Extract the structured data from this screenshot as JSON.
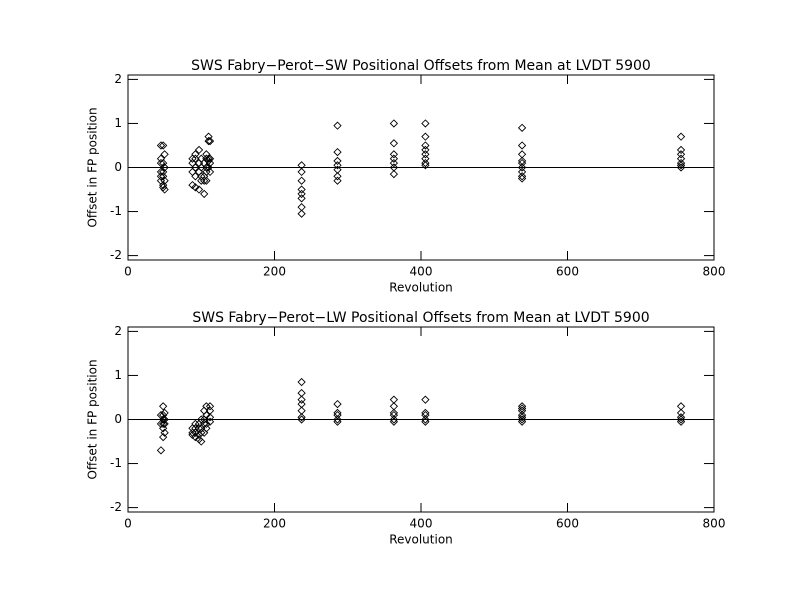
{
  "chart_data": [
    {
      "type": "scatter",
      "title": "SWS Fabry−Perot−SW Positional Offsets from Mean at LVDT 5900",
      "xlabel": "Revolution",
      "ylabel": "Offset in FP position",
      "xlim": [
        0,
        800
      ],
      "ylim": [
        -2.1,
        2.1
      ],
      "xticks": [
        0,
        200,
        400,
        600,
        800
      ],
      "yticks": [
        -2,
        -1,
        0,
        1,
        2
      ],
      "color": "#000000",
      "zero_line": true,
      "x": [
        45,
        45,
        45,
        45,
        45,
        45,
        48,
        48,
        48,
        48,
        48,
        48,
        50,
        50,
        50,
        50,
        88,
        88,
        88,
        88,
        92,
        92,
        92,
        92,
        92,
        97,
        97,
        97,
        97,
        100,
        100,
        100,
        100,
        104,
        104,
        104,
        104,
        107,
        107,
        107,
        107,
        107,
        110,
        110,
        110,
        110,
        110,
        112,
        112,
        112,
        112,
        237,
        237,
        237,
        237,
        237,
        237,
        237,
        237,
        286,
        286,
        286,
        286,
        286,
        286,
        286,
        363,
        363,
        363,
        363,
        363,
        363,
        363,
        406,
        406,
        406,
        406,
        406,
        406,
        406,
        406,
        538,
        538,
        538,
        538,
        538,
        538,
        538,
        538,
        538,
        755,
        755,
        755,
        755,
        755,
        755,
        755
      ],
      "values": [
        0.5,
        0.2,
        0.1,
        -0.1,
        -0.2,
        -0.3,
        0.5,
        0.1,
        -0.1,
        -0.2,
        -0.4,
        -0.45,
        0.3,
        0,
        -0.3,
        -0.5,
        0.2,
        0.1,
        -0.1,
        -0.4,
        0.3,
        0.2,
        0,
        -0.2,
        -0.45,
        0.4,
        0.1,
        -0.1,
        -0.5,
        0.2,
        0,
        -0.2,
        -0.3,
        0.1,
        -0.2,
        -0.3,
        -0.6,
        0.3,
        0.2,
        0,
        -0.1,
        -0.3,
        0.7,
        0.6,
        0.2,
        0.15,
        0,
        0.6,
        0.2,
        0.1,
        -0.1,
        0.05,
        -0.1,
        -0.3,
        -0.5,
        -0.6,
        -0.7,
        -0.9,
        -1.05,
        0.95,
        0.35,
        0.15,
        0.05,
        -0.05,
        -0.2,
        -0.3,
        1.0,
        0.55,
        0.3,
        0.2,
        0.1,
        0,
        -0.15,
        1.0,
        0.7,
        0.5,
        0.4,
        0.3,
        0.2,
        0.1,
        0.05,
        0.9,
        0.5,
        0.3,
        0.15,
        0.1,
        0,
        -0.1,
        -0.2,
        -0.25,
        0.7,
        0.4,
        0.3,
        0.2,
        0.1,
        0.05,
        0
      ]
    },
    {
      "type": "scatter",
      "title": "SWS Fabry−Perot−LW Positional Offsets from Mean at LVDT 5900",
      "xlabel": "Revolution",
      "ylabel": "Offset in FP position",
      "xlim": [
        0,
        800
      ],
      "ylim": [
        -2.1,
        2.1
      ],
      "xticks": [
        0,
        200,
        400,
        600,
        800
      ],
      "yticks": [
        -2,
        -1,
        0,
        1,
        2
      ],
      "color": "#000000",
      "zero_line": true,
      "x": [
        45,
        45,
        45,
        48,
        48,
        48,
        48,
        48,
        48,
        50,
        50,
        50,
        50,
        88,
        88,
        88,
        92,
        92,
        92,
        92,
        97,
        97,
        97,
        97,
        100,
        100,
        100,
        100,
        104,
        104,
        104,
        104,
        107,
        107,
        107,
        107,
        112,
        112,
        112,
        112,
        237,
        237,
        237,
        237,
        237,
        237,
        237,
        286,
        286,
        286,
        286,
        286,
        363,
        363,
        363,
        363,
        363,
        363,
        406,
        406,
        406,
        406,
        406,
        538,
        538,
        538,
        538,
        538,
        538,
        538,
        755,
        755,
        755,
        755,
        755
      ],
      "values": [
        -0.7,
        -0.1,
        0.1,
        0.3,
        0.1,
        0,
        -0.1,
        -0.2,
        -0.4,
        0.15,
        0,
        -0.1,
        -0.3,
        -0.2,
        -0.3,
        -0.35,
        -0.1,
        -0.2,
        -0.3,
        -0.4,
        -0.1,
        -0.2,
        -0.35,
        -0.45,
        0,
        -0.2,
        -0.3,
        -0.5,
        0.2,
        0,
        -0.1,
        -0.3,
        0.3,
        0.1,
        -0.1,
        -0.2,
        0.3,
        0.2,
        0.05,
        -0.05,
        0.85,
        0.6,
        0.45,
        0.35,
        0.2,
        0.05,
        0,
        0.35,
        0.15,
        0.1,
        0,
        -0.05,
        0.45,
        0.3,
        0.15,
        0.1,
        0,
        -0.05,
        0.45,
        0.15,
        0.1,
        0,
        -0.05,
        0.3,
        0.25,
        0.2,
        0.1,
        0.05,
        0,
        -0.05,
        0.3,
        0.15,
        0.05,
        0,
        -0.05
      ]
    }
  ]
}
